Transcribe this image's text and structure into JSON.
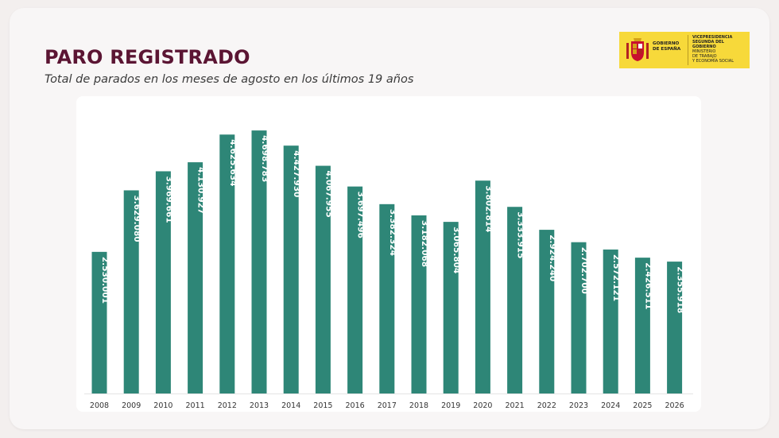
{
  "header": {
    "title": "PARO REGISTRADO",
    "subtitle": "Total de parados en los meses de agosto en los últimos 19 años"
  },
  "logo": {
    "line1": "GOBIERNO",
    "line2": "DE ESPAÑA",
    "vice1": "VICEPRESIDENCIA",
    "vice2": "SEGUNDA DEL GOBIERNO",
    "min1": "MINISTERIO",
    "min2": "DE TRABAJO",
    "min3": "Y ECONOMÍA SOCIAL",
    "icon": "coat-of-arms-icon"
  },
  "colors": {
    "bar": "#2e8677",
    "title": "#5b1533",
    "logo_bg": "#f7d93a"
  },
  "chart_data": {
    "type": "bar",
    "categories": [
      "2008",
      "2009",
      "2010",
      "2011",
      "2012",
      "2013",
      "2014",
      "2015",
      "2016",
      "2017",
      "2018",
      "2019",
      "2020",
      "2021",
      "2022",
      "2023",
      "2024",
      "2025",
      "2026"
    ],
    "values": [
      2530001,
      3629080,
      3969661,
      4130927,
      4625634,
      4698783,
      4427930,
      4067955,
      3697496,
      3382324,
      3182068,
      3065804,
      3802814,
      3333915,
      2924240,
      2702700,
      2572121,
      2426511,
      2355918
    ],
    "labels": [
      "2.530.001",
      "3.629.080",
      "3.969.661",
      "4.130.927",
      "4.625.634",
      "4.698.783",
      "4.427.930",
      "4.067.955",
      "3.697.496",
      "3.382.324",
      "3.182.068",
      "3.065.804",
      "3.802.814",
      "3.333.915",
      "2.924.240",
      "2.702.700",
      "2.572.121",
      "2.426.511",
      "2.355.918"
    ],
    "ylim": [
      0,
      4800000
    ],
    "grid": false,
    "legend": "none"
  }
}
